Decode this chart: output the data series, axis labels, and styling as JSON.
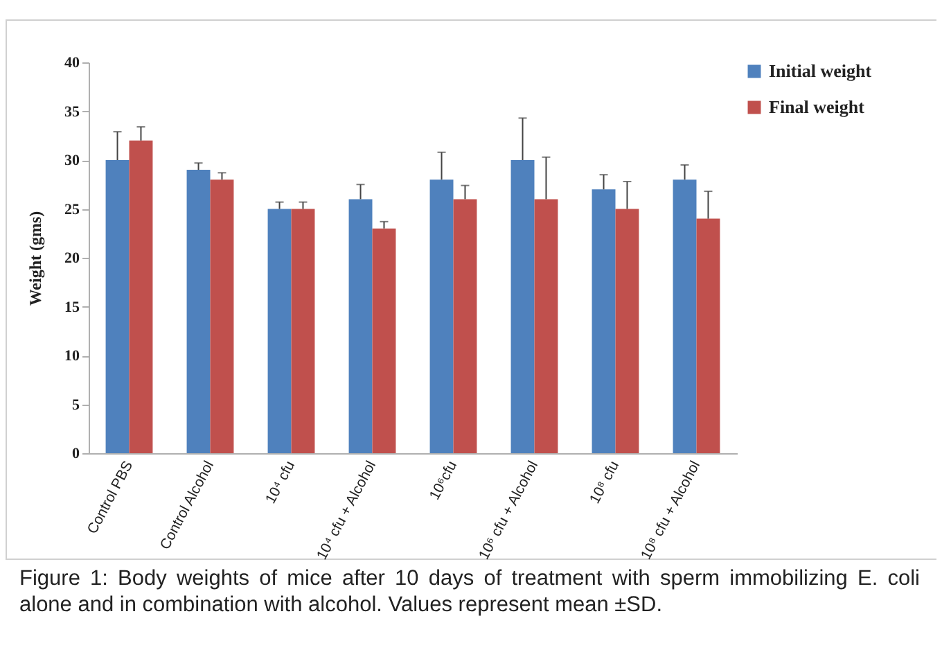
{
  "chart_data": {
    "type": "bar",
    "ylabel": "Weight (gms)",
    "categories": [
      "Control PBS",
      "Control Alcohol",
      "10⁴ cfu",
      "10⁴ cfu + Alcohol",
      "10⁶cfu",
      "10⁶ cfu + Alcohol",
      "10⁸ cfu",
      "10⁸ cfu + Alcohol"
    ],
    "series": [
      {
        "name": "Initial weight",
        "color": "#4f81bd",
        "values": [
          30,
          29,
          25,
          26,
          28,
          30,
          27,
          28
        ],
        "errors": [
          2.9,
          0.7,
          0.7,
          1.5,
          2.8,
          4.3,
          1.5,
          1.5
        ]
      },
      {
        "name": "Final weight",
        "color": "#c0504d",
        "values": [
          32,
          28,
          25,
          23,
          26,
          26,
          25,
          24
        ],
        "errors": [
          1.4,
          0.7,
          0.7,
          0.7,
          1.4,
          4.3,
          2.8,
          2.8
        ]
      }
    ],
    "ylim": [
      0,
      40
    ],
    "yticks": [
      0,
      5,
      10,
      15,
      20,
      25,
      30,
      35,
      40
    ],
    "grid": false,
    "legend": "right",
    "annotations": [
      "Figure 1:  Body weights of mice after 10 days of treatment with sperm immobilizing E. coli alone and in combination with alcohol. Values represent mean ±SD."
    ]
  }
}
